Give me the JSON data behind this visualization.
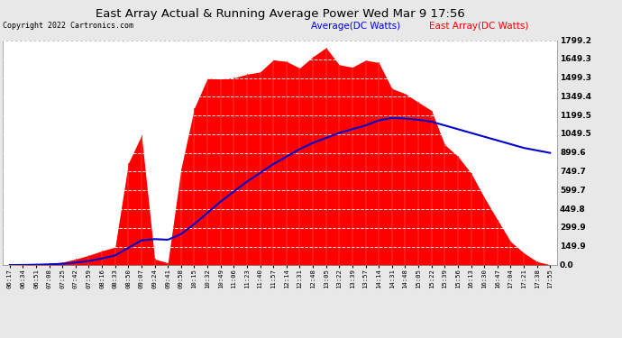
{
  "title": "East Array Actual & Running Average Power Wed Mar 9 17:56",
  "copyright": "Copyright 2022 Cartronics.com",
  "legend_avg": "Average(DC Watts)",
  "legend_east": "East Array(DC Watts)",
  "ymin": 0.0,
  "ymax": 1799.2,
  "yticks": [
    0.0,
    149.9,
    299.9,
    449.8,
    599.7,
    749.7,
    899.6,
    1049.5,
    1199.5,
    1349.4,
    1499.3,
    1649.3,
    1799.2
  ],
  "bg_color": "#ffffff",
  "plot_bg_color": "#ffffff",
  "grid_color": "#aaaaaa",
  "east_color": "#ff0000",
  "avg_color": "#0000cc",
  "title_color": "#000000",
  "xtick_labels": [
    "06:17",
    "06:34",
    "06:51",
    "07:08",
    "07:25",
    "07:42",
    "07:59",
    "08:16",
    "08:33",
    "08:50",
    "09:07",
    "09:24",
    "09:41",
    "09:58",
    "10:15",
    "10:32",
    "10:49",
    "11:06",
    "11:23",
    "11:40",
    "11:57",
    "12:14",
    "12:31",
    "12:48",
    "13:05",
    "13:22",
    "13:39",
    "13:57",
    "14:14",
    "14:31",
    "14:48",
    "15:05",
    "15:22",
    "15:39",
    "15:56",
    "16:13",
    "16:30",
    "16:47",
    "17:04",
    "17:21",
    "17:38",
    "17:55"
  ],
  "n_points": 42,
  "east_data": [
    2,
    5,
    8,
    15,
    25,
    50,
    80,
    120,
    160,
    900,
    1100,
    50,
    20,
    800,
    1350,
    1500,
    1550,
    1600,
    1650,
    1680,
    1700,
    1750,
    1780,
    1799,
    1799,
    1780,
    1760,
    1740,
    1720,
    1480,
    1400,
    1350,
    1300,
    1000,
    950,
    800,
    600,
    400,
    200,
    100,
    30,
    5
  ],
  "avg_data": [
    2,
    3,
    5,
    8,
    12,
    22,
    35,
    55,
    80,
    140,
    200,
    210,
    205,
    250,
    330,
    420,
    510,
    590,
    670,
    740,
    810,
    870,
    930,
    980,
    1020,
    1060,
    1090,
    1120,
    1160,
    1180,
    1175,
    1165,
    1150,
    1120,
    1090,
    1060,
    1030,
    1000,
    970,
    940,
    920,
    900
  ]
}
